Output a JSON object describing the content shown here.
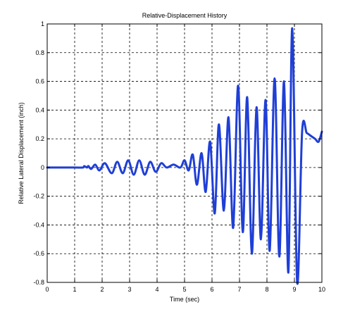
{
  "chart_data": {
    "type": "line",
    "title": "Relative-Displacement History",
    "xlabel": "Time (sec)",
    "ylabel": "Relative Lateral Displacement (inch)",
    "xlim": [
      0,
      10
    ],
    "ylim": [
      -0.8,
      1
    ],
    "xticks": [
      0,
      1,
      2,
      3,
      4,
      5,
      6,
      7,
      8,
      9,
      10
    ],
    "yticks": [
      -0.8,
      -0.6,
      -0.4,
      -0.2,
      0,
      0.2,
      0.4,
      0.6,
      0.8,
      1
    ],
    "xtick_labels": [
      "0",
      "1",
      "2",
      "3",
      "4",
      "5",
      "6",
      "7",
      "8",
      "9",
      "10"
    ],
    "ytick_labels": [
      "-0.8",
      "-0.6",
      "-0.4",
      "-0.2",
      "0",
      "0.2",
      "0.4",
      "0.6",
      "0.8",
      "1"
    ],
    "grid": true,
    "grid_style": "dashed",
    "legend": "none",
    "series": [
      {
        "color": "#1f3fd6",
        "x": [
          0,
          0.5,
          1.0,
          1.3,
          1.35,
          1.45,
          1.5,
          1.6,
          1.75,
          1.9,
          2.1,
          2.35,
          2.55,
          2.75,
          2.95,
          3.15,
          3.35,
          3.55,
          3.75,
          3.95,
          4.15,
          4.35,
          4.6,
          4.85,
          5.0,
          5.15,
          5.3,
          5.45,
          5.62,
          5.77,
          5.93,
          6.1,
          6.25,
          6.43,
          6.6,
          6.77,
          6.95,
          7.12,
          7.28,
          7.45,
          7.62,
          7.78,
          7.95,
          8.1,
          8.28,
          8.45,
          8.62,
          8.78,
          8.92,
          9.1,
          9.28,
          9.45,
          9.6,
          9.75,
          9.88,
          10.0
        ],
        "y": [
          0.0,
          0.0,
          0.0,
          0.0,
          0.01,
          0.0,
          0.01,
          -0.01,
          0.02,
          -0.02,
          0.03,
          -0.04,
          0.04,
          -0.04,
          0.05,
          -0.05,
          0.05,
          -0.05,
          0.04,
          -0.03,
          0.03,
          0.0,
          0.02,
          0.0,
          0.05,
          -0.02,
          0.09,
          -0.12,
          0.1,
          -0.17,
          0.18,
          -0.32,
          0.3,
          -0.3,
          0.35,
          -0.42,
          0.57,
          -0.45,
          0.49,
          -0.6,
          0.42,
          -0.5,
          0.47,
          -0.58,
          0.62,
          -0.62,
          0.6,
          -0.73,
          0.97,
          -0.8,
          0.25,
          0.24,
          0.22,
          0.2,
          0.18,
          0.25
        ]
      }
    ]
  }
}
